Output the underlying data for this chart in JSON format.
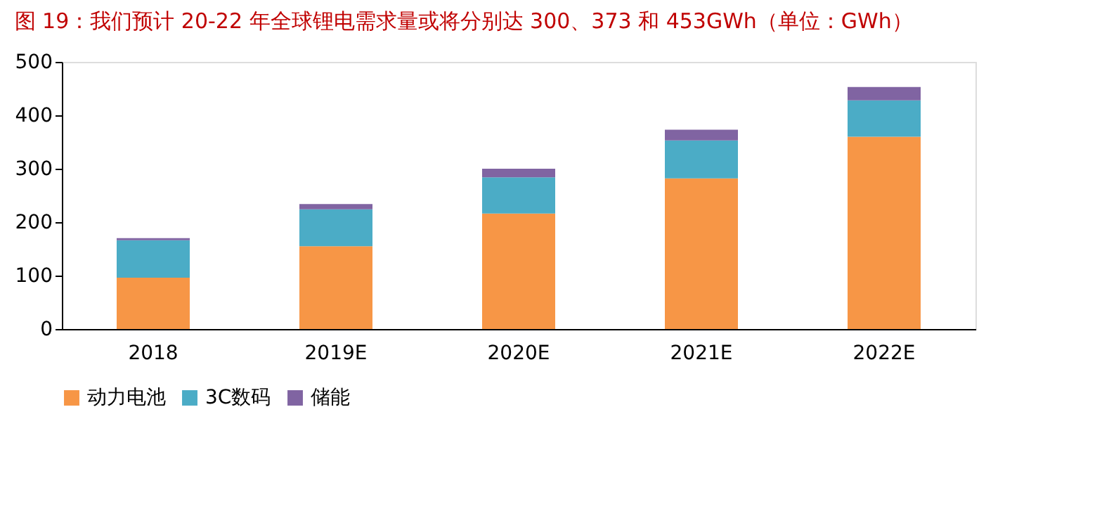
{
  "chart_data": {
    "type": "bar",
    "title": "图 19：我们预计 20-22 年全球锂电需求量或将分别达 300、373 和 453GWh（单位：GWh）",
    "categories": [
      "2018",
      "2019E",
      "2020E",
      "2021E",
      "2022E"
    ],
    "stacked": true,
    "series": [
      {
        "name": "动力电池",
        "color": "#f79646",
        "values": [
          96,
          155,
          216,
          282,
          360
        ]
      },
      {
        "name": "3C数码",
        "color": "#4bacc6",
        "values": [
          70,
          69,
          68,
          71,
          68
        ]
      },
      {
        "name": "储能",
        "color": "#8064a2",
        "values": [
          4,
          10,
          16,
          20,
          25
        ]
      }
    ],
    "ylim": [
      0,
      500
    ],
    "yticks": [
      0,
      100,
      200,
      300,
      400,
      500
    ],
    "grid": false,
    "legend": "bottom"
  }
}
